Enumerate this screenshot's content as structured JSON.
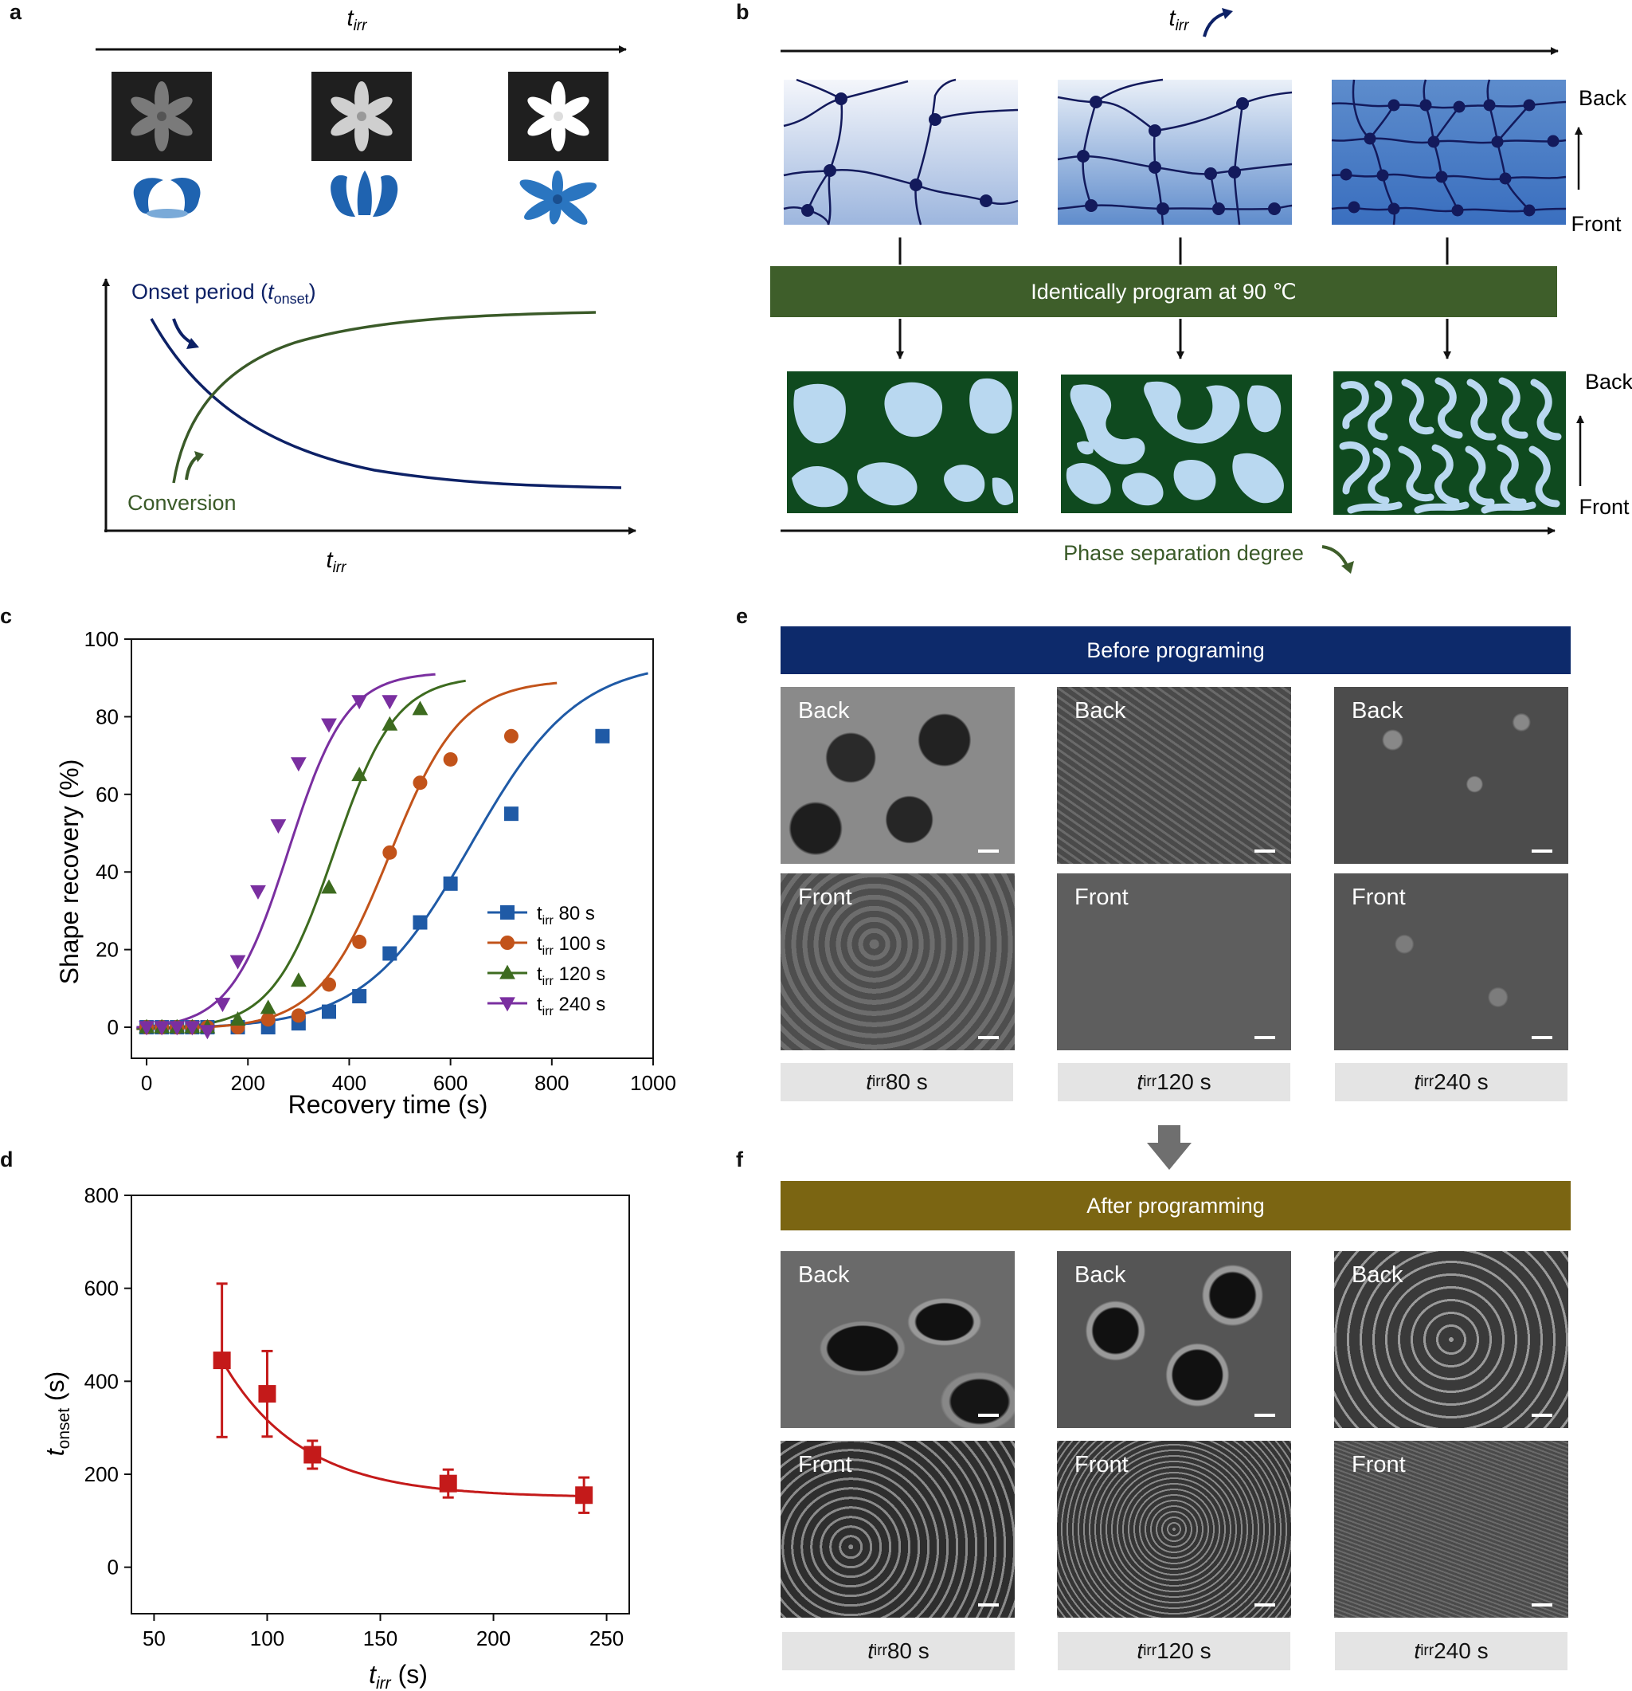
{
  "panels": {
    "a": {
      "letter": "a",
      "axis_label": "t",
      "axis_label_sub": "irr",
      "bottom_axis_label": "t",
      "bottom_axis_label_sub": "irr",
      "onset_label_pre": "Onset period (",
      "onset_label_t": "t",
      "onset_label_sub": "onset",
      "onset_label_post": ")",
      "conversion_label": "Conversion",
      "colors": {
        "onset": "#0d2166",
        "conversion": "#3a5a28",
        "flower": "#1f63b0"
      }
    },
    "b": {
      "letter": "b",
      "axis_label": "t",
      "axis_label_sub": "irr",
      "program_text": "Identically program at 90 ℃",
      "back_label": "Back",
      "front_label": "Front",
      "phase_label": "Phase separation degree",
      "colors": {
        "program_bar": "#3e5e2a",
        "phase_dark": "#0f4a1f",
        "phase_light": "#b9d8f0",
        "network": "#131a5c"
      }
    },
    "c": {
      "letter": "c"
    },
    "d": {
      "letter": "d"
    },
    "e": {
      "letter": "e",
      "banner": "Before programing",
      "banner_color": "#0d2a6b",
      "captions": [
        {
          "t": "t",
          "sub": "irr",
          "rest": " 80 s"
        },
        {
          "t": "t",
          "sub": "irr",
          "rest": " 120 s"
        },
        {
          "t": "t",
          "sub": "irr",
          "rest": " 240 s"
        }
      ],
      "back_label": "Back",
      "front_label": "Front"
    },
    "f": {
      "letter": "f",
      "banner": "After programming",
      "banner_color": "#7b6512",
      "captions": [
        {
          "t": "t",
          "sub": "irr",
          "rest": " 80 s"
        },
        {
          "t": "t",
          "sub": "irr",
          "rest": " 120 s"
        },
        {
          "t": "t",
          "sub": "irr",
          "rest": " 240 s"
        }
      ],
      "back_label": "Back",
      "front_label": "Front"
    }
  },
  "chart_data": [
    {
      "id": "c",
      "type": "scatter",
      "xlabel": "Recovery time (s)",
      "ylabel": "Shape recovery (%)",
      "xlim": [
        -30,
        1000
      ],
      "ylim": [
        -8,
        100
      ],
      "xticks": [
        0,
        200,
        400,
        600,
        800,
        1000
      ],
      "yticks": [
        0,
        20,
        40,
        60,
        80,
        100
      ],
      "legend_position": "center-right",
      "series": [
        {
          "name": "t",
          "name_sub": "irr",
          "name_rest": " 80 s",
          "color": "#1f5aa6",
          "marker": "square",
          "x": [
            0,
            30,
            60,
            90,
            120,
            180,
            240,
            300,
            360,
            420,
            480,
            540,
            600,
            720,
            900
          ],
          "y": [
            0,
            0,
            0,
            0,
            0,
            0,
            0,
            1,
            4,
            8,
            19,
            27,
            37,
            55,
            75
          ],
          "fit_x0": 640,
          "fit_k": 0.0095,
          "fit_top": 95
        },
        {
          "name": "t",
          "name_sub": "irr",
          "name_rest": " 100 s",
          "color": "#c2531a",
          "marker": "circle",
          "x": [
            0,
            30,
            60,
            90,
            120,
            180,
            240,
            300,
            360,
            420,
            480,
            540,
            600,
            720
          ],
          "y": [
            0,
            0,
            0,
            0,
            0,
            0,
            2,
            3,
            11,
            22,
            45,
            63,
            69,
            75
          ],
          "fit_x0": 480,
          "fit_k": 0.0142,
          "fit_top": 90
        },
        {
          "name": "t",
          "name_sub": "irr",
          "name_rest": " 120 s",
          "color": "#3d6b1f",
          "marker": "triangle-up",
          "x": [
            0,
            30,
            60,
            90,
            120,
            180,
            240,
            300,
            360,
            420,
            480,
            540
          ],
          "y": [
            0,
            0,
            0,
            0,
            0,
            2,
            5,
            12,
            36,
            65,
            78,
            82
          ],
          "fit_x0": 370,
          "fit_k": 0.0165,
          "fit_top": 91
        },
        {
          "name": "t",
          "name_sub": "irr",
          "name_rest": " 240 s",
          "color": "#7a2fa0",
          "marker": "triangle-down",
          "x": [
            0,
            30,
            60,
            90,
            120,
            150,
            180,
            220,
            260,
            300,
            360,
            420,
            480
          ],
          "y": [
            0,
            0,
            0,
            0,
            -1,
            6,
            17,
            35,
            52,
            68,
            78,
            84,
            84
          ],
          "fit_x0": 280,
          "fit_k": 0.0175,
          "fit_top": 92
        }
      ]
    },
    {
      "id": "d",
      "type": "scatter",
      "xlabel_t": "t",
      "xlabel_sub": "irr",
      "xlabel_rest": " (s)",
      "ylabel_t": "t",
      "ylabel_sub": "onset",
      "ylabel_rest": " (s)",
      "xlim": [
        40,
        260
      ],
      "ylim": [
        -100,
        800
      ],
      "xticks": [
        50,
        100,
        150,
        200,
        250
      ],
      "yticks": [
        0,
        200,
        400,
        600,
        800
      ],
      "color": "#c41a1a",
      "x": [
        80,
        100,
        120,
        180,
        240
      ],
      "y": [
        445,
        373,
        242,
        180,
        155
      ],
      "yerr": [
        165,
        92,
        30,
        30,
        38
      ],
      "xerr": [
        3,
        3,
        3,
        3,
        3
      ],
      "fit": {
        "model": "a + b*exp(-(x-80)/tau)",
        "a": 150,
        "b": 295,
        "tau": 35
      }
    }
  ]
}
